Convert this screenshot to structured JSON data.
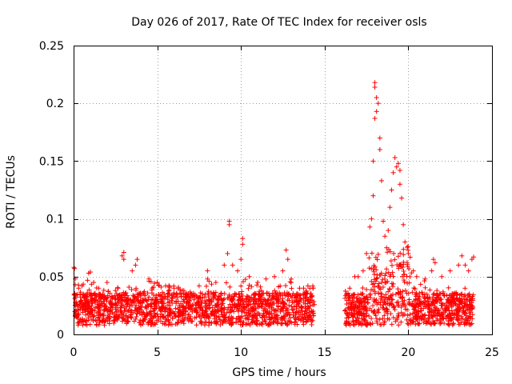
{
  "chart_data": {
    "type": "scatter",
    "title": "Day 026 of 2017, Rate Of TEC Index for receiver osls",
    "xlabel": "GPS time / hours",
    "ylabel": "ROTI / TECUs",
    "xlim": [
      0,
      25
    ],
    "ylim": [
      0,
      0.25
    ],
    "grid": true,
    "marker": "+",
    "color": "#ff0000",
    "xticks": [
      0,
      5,
      10,
      15,
      20,
      25
    ],
    "xtick_labels": [
      "0",
      "5",
      "10",
      "15",
      "20",
      "25"
    ],
    "yticks": [
      0,
      0.05,
      0.1,
      0.15,
      0.2,
      0.25
    ],
    "ytick_labels": [
      "0",
      "0.05",
      "0.1",
      "0.15",
      "0.2",
      "0.25"
    ],
    "data_gap_hours": [
      14.4,
      16.2
    ],
    "series": [
      {
        "name": "ROTI",
        "points": [
          [
            0.02,
            0.058
          ],
          [
            0.05,
            0.057
          ],
          [
            0.1,
            0.048
          ],
          [
            0.1,
            0.043
          ],
          [
            0.3,
            0.04
          ],
          [
            0.5,
            0.042
          ],
          [
            0.9,
            0.053
          ],
          [
            1.0,
            0.054
          ],
          [
            1.2,
            0.045
          ],
          [
            1.5,
            0.04
          ],
          [
            2.0,
            0.045
          ],
          [
            2.5,
            0.038
          ],
          [
            2.9,
            0.068
          ],
          [
            3.0,
            0.071
          ],
          [
            3.0,
            0.065
          ],
          [
            3.5,
            0.055
          ],
          [
            3.7,
            0.06
          ],
          [
            3.8,
            0.065
          ],
          [
            4.5,
            0.048
          ],
          [
            5.0,
            0.045
          ],
          [
            5.5,
            0.042
          ],
          [
            6.0,
            0.04
          ],
          [
            6.5,
            0.038
          ],
          [
            7.0,
            0.035
          ],
          [
            7.5,
            0.042
          ],
          [
            8.0,
            0.048
          ],
          [
            8.0,
            0.055
          ],
          [
            8.5,
            0.045
          ],
          [
            9.0,
            0.06
          ],
          [
            9.2,
            0.07
          ],
          [
            9.3,
            0.098
          ],
          [
            9.3,
            0.095
          ],
          [
            9.5,
            0.06
          ],
          [
            9.8,
            0.055
          ],
          [
            10.0,
            0.065
          ],
          [
            10.1,
            0.083
          ],
          [
            10.1,
            0.078
          ],
          [
            10.5,
            0.05
          ],
          [
            11.0,
            0.045
          ],
          [
            11.5,
            0.048
          ],
          [
            12.0,
            0.05
          ],
          [
            12.5,
            0.055
          ],
          [
            12.7,
            0.073
          ],
          [
            12.8,
            0.065
          ],
          [
            13.0,
            0.045
          ],
          [
            13.5,
            0.04
          ],
          [
            14.0,
            0.042
          ],
          [
            14.3,
            0.04
          ],
          [
            16.3,
            0.035
          ],
          [
            16.5,
            0.04
          ],
          [
            16.8,
            0.05
          ],
          [
            17.0,
            0.05
          ],
          [
            17.3,
            0.055
          ],
          [
            17.5,
            0.07
          ],
          [
            17.7,
            0.093
          ],
          [
            17.8,
            0.1
          ],
          [
            17.9,
            0.12
          ],
          [
            17.9,
            0.15
          ],
          [
            18.0,
            0.218
          ],
          [
            18.0,
            0.214
          ],
          [
            18.0,
            0.187
          ],
          [
            18.1,
            0.205
          ],
          [
            18.1,
            0.193
          ],
          [
            18.2,
            0.2
          ],
          [
            18.3,
            0.17
          ],
          [
            18.3,
            0.16
          ],
          [
            18.4,
            0.133
          ],
          [
            18.5,
            0.098
          ],
          [
            18.6,
            0.085
          ],
          [
            18.7,
            0.075
          ],
          [
            18.8,
            0.09
          ],
          [
            18.9,
            0.11
          ],
          [
            19.0,
            0.125
          ],
          [
            19.1,
            0.14
          ],
          [
            19.2,
            0.153
          ],
          [
            19.3,
            0.145
          ],
          [
            19.4,
            0.148
          ],
          [
            19.5,
            0.142
          ],
          [
            19.5,
            0.13
          ],
          [
            19.6,
            0.118
          ],
          [
            19.7,
            0.095
          ],
          [
            19.8,
            0.08
          ],
          [
            20.0,
            0.07
          ],
          [
            20.3,
            0.055
          ],
          [
            20.5,
            0.05
          ],
          [
            21.0,
            0.048
          ],
          [
            21.4,
            0.055
          ],
          [
            21.5,
            0.065
          ],
          [
            21.6,
            0.062
          ],
          [
            22.0,
            0.05
          ],
          [
            22.5,
            0.055
          ],
          [
            23.0,
            0.06
          ],
          [
            23.2,
            0.068
          ],
          [
            23.4,
            0.06
          ],
          [
            23.6,
            0.055
          ],
          [
            23.8,
            0.065
          ],
          [
            23.9,
            0.067
          ]
        ]
      }
    ]
  }
}
